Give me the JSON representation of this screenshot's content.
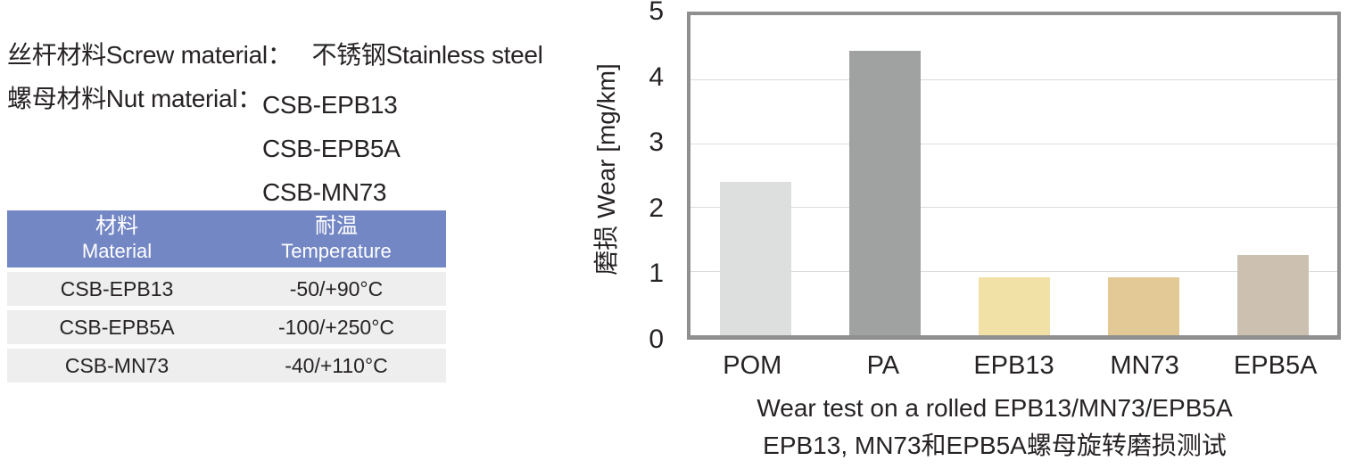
{
  "colors": {
    "table_header_bg": "#7487C5",
    "table_row_bg": "#EEEEEE",
    "chart_frame": "#8F8F8F",
    "gridline": "#DCDCDC",
    "text": "#272324"
  },
  "info": {
    "screw_label": "丝杆材料Screw material：",
    "screw_value": "不锈钢Stainless steel",
    "nut_label": "螺母材料Nut material：",
    "nut_materials": [
      "CSB-EPB13",
      "CSB-EPB5A",
      "CSB-MN73"
    ]
  },
  "table": {
    "columns": [
      {
        "zh": "材料",
        "en": "Material"
      },
      {
        "zh": "耐温",
        "en": "Temperature"
      }
    ],
    "rows": [
      {
        "material": "CSB-EPB13",
        "temperature": "-50/+90°C"
      },
      {
        "material": "CSB-EPB5A",
        "temperature": "-100/+250°C"
      },
      {
        "material": "CSB-MN73",
        "temperature": "-40/+110°C"
      }
    ]
  },
  "chart_data": {
    "type": "bar",
    "categories": [
      "POM",
      "PA",
      "EPB13",
      "MN73",
      "EPB5A"
    ],
    "values": [
      2.4,
      4.45,
      0.9,
      0.9,
      1.25
    ],
    "bar_colors": [
      "#DDDEDE",
      "#A0A1A1",
      "#F2E1A6",
      "#E2C995",
      "#CCC1B1"
    ],
    "title": "",
    "xlabel": "",
    "ylabel": "磨损  Wear [mg/km]",
    "ylim": [
      0,
      5
    ],
    "yticks": [
      0,
      1,
      2,
      3,
      4,
      5
    ],
    "grid": "horizontal gridlines at 1,2,3,4",
    "legend": "none",
    "caption_line1": "Wear test on a rolled EPB13/MN73/EPB5A",
    "caption_line2": "EPB13, MN73和EPB5A螺母旋转磨损测试"
  }
}
